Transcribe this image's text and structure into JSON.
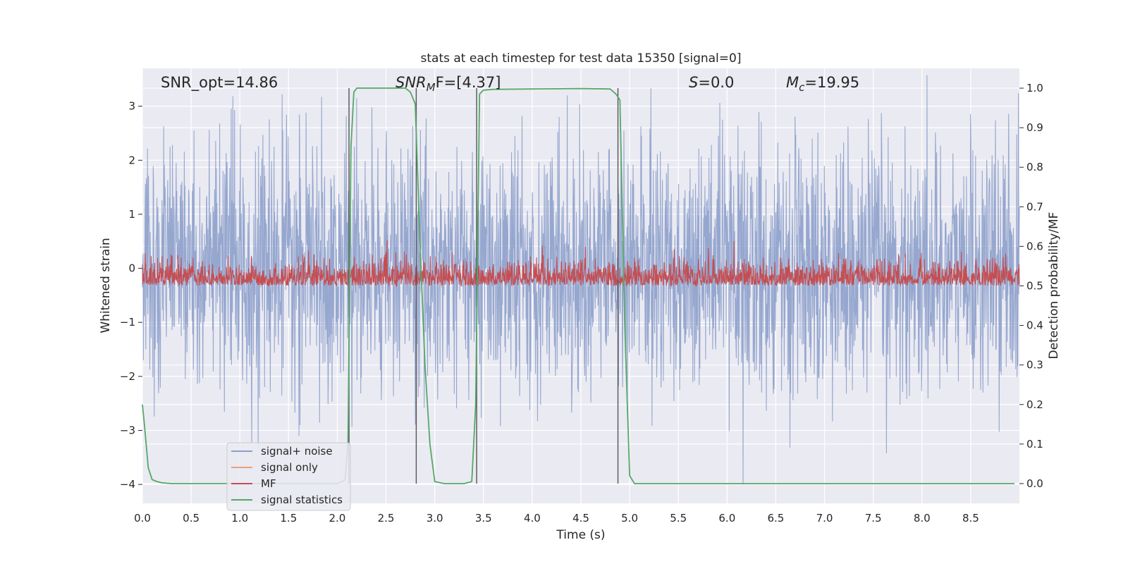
{
  "chart_data": {
    "type": "line",
    "title": "stats at each timestep for test data 15350 [signal=0]",
    "xlabel": "Time (s)",
    "ylabel_left": "Whitened strain",
    "ylabel_right": "Detection probability/MF",
    "xlim": [
      0,
      9.0
    ],
    "ylim_left": [
      -4.35,
      3.7
    ],
    "ylim_right": [
      -0.05,
      1.05
    ],
    "x_ticks": [
      "0.0",
      "0.5",
      "1.0",
      "1.5",
      "2.0",
      "2.5",
      "3.0",
      "3.5",
      "4.0",
      "4.5",
      "5.0",
      "5.5",
      "6.0",
      "6.5",
      "7.0",
      "7.5",
      "8.0",
      "8.5"
    ],
    "y_ticks_left": [
      "3",
      "2",
      "1",
      "0",
      "−1",
      "−2",
      "−3",
      "−4"
    ],
    "y_ticks_right": [
      "1.0",
      "0.9",
      "0.8",
      "0.7",
      "0.6",
      "0.5",
      "0.4",
      "0.3",
      "0.2",
      "0.1",
      "0.0"
    ],
    "grid": true,
    "legend_position": "lower-left",
    "annotations": {
      "snr_opt": "SNR_opt=14.86",
      "snr_mf_main": "SNR",
      "snr_mf_sub": "M",
      "snr_mf_rest": "F=[4.37]",
      "s_var": "S",
      "s_rest": "=0.0",
      "mc_var": "M",
      "mc_sub": "c",
      "mc_rest": "=19.95"
    },
    "vertical_lines": [
      2.12,
      2.81,
      3.43,
      4.88
    ],
    "series": [
      {
        "name": "signal+ noise",
        "color": "#8da0cb",
        "axis": "left",
        "kind": "noise",
        "amplitude_typical": 1.2,
        "amplitude_extreme": [
          3.7,
          -4.0
        ]
      },
      {
        "name": "signal only",
        "color": "#e8a27c",
        "axis": "left",
        "values": []
      },
      {
        "name": "MF",
        "color": "#c44e52",
        "axis": "right",
        "kind": "noise",
        "range": [
          0.5,
          0.66
        ]
      },
      {
        "name": "signal statistics",
        "color": "#55a868",
        "axis": "right",
        "x": [
          0.0,
          0.02,
          0.06,
          0.1,
          0.15,
          0.2,
          0.3,
          0.5,
          1.0,
          1.5,
          1.9,
          2.0,
          2.05,
          2.08,
          2.11,
          2.14,
          2.17,
          2.2,
          2.4,
          2.6,
          2.7,
          2.75,
          2.8,
          2.85,
          2.9,
          2.95,
          3.0,
          3.1,
          3.2,
          3.3,
          3.38,
          3.42,
          3.46,
          3.5,
          3.6,
          4.0,
          4.5,
          4.8,
          4.86,
          4.9,
          4.95,
          5.0,
          5.05,
          5.1,
          5.5,
          6.0,
          7.0,
          8.0,
          8.95
        ],
        "y": [
          0.2,
          0.15,
          0.04,
          0.01,
          0.005,
          0.002,
          0.0,
          0.0,
          0.0,
          0.0,
          0.0,
          0.0,
          0.005,
          0.01,
          0.1,
          0.85,
          0.99,
          1.0,
          1.0,
          1.0,
          1.0,
          0.99,
          0.96,
          0.6,
          0.3,
          0.1,
          0.005,
          0.0,
          0.0,
          0.0,
          0.005,
          0.2,
          0.985,
          0.995,
          0.997,
          0.998,
          0.999,
          0.998,
          0.985,
          0.97,
          0.4,
          0.02,
          0.0,
          0.0,
          0.0,
          0.0,
          0.0,
          0.0,
          0.0
        ]
      }
    ]
  }
}
